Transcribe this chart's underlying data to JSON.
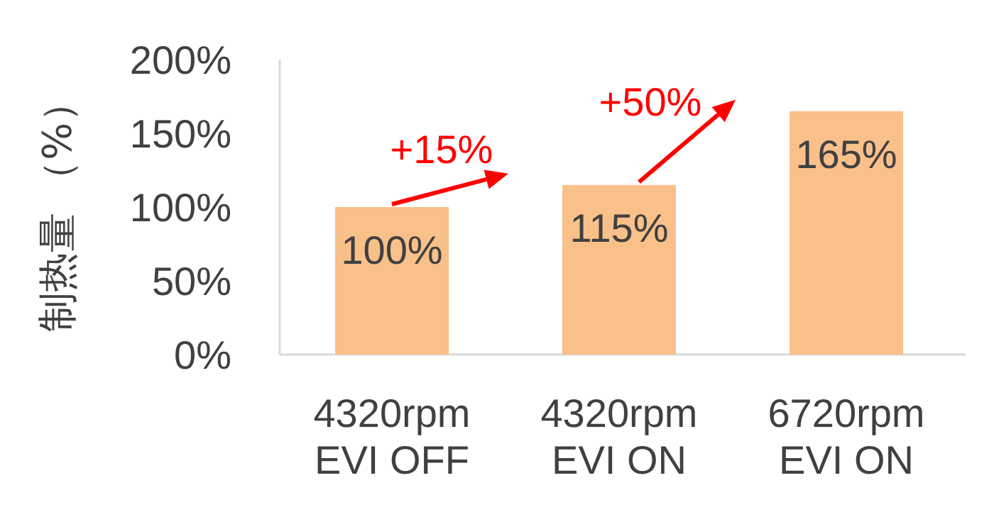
{
  "chart_data": {
    "type": "bar",
    "ylabel": "制热量 （%）",
    "categories": [
      "4320rpm EVI OFF",
      "4320rpm EVI ON",
      "6720rpm EVI ON"
    ],
    "values": [
      100,
      115,
      165
    ],
    "color": "#f9c08a",
    "value_labels": [
      "100%",
      "115%",
      "165%"
    ],
    "ylim": [
      0,
      200
    ],
    "yticks": [
      {
        "value": 0,
        "label": "0%"
      },
      {
        "value": 50,
        "label": "50%"
      },
      {
        "value": 100,
        "label": "100%"
      },
      {
        "value": 150,
        "label": "150%"
      },
      {
        "value": 200,
        "label": "200%"
      }
    ],
    "annotations": [
      "+15%",
      "+50%"
    ]
  }
}
